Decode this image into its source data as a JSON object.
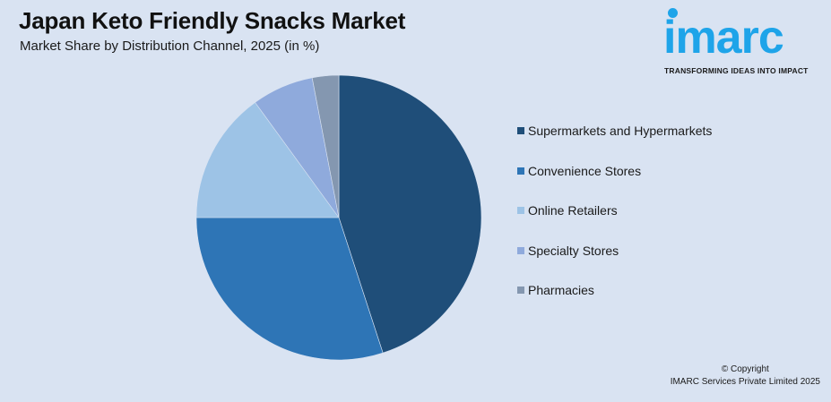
{
  "header": {
    "title": "Japan Keto Friendly Snacks Market",
    "subtitle": "Market Share by Distribution Channel, 2025 (in %)"
  },
  "logo": {
    "name": "imarc",
    "tagline": "TRANSFORMING IDEAS INTO IMPACT",
    "color": "#1ea4e9"
  },
  "footer": {
    "copyright": "© Copyright",
    "company": "IMARC Services Private Limited 2025"
  },
  "chart_data": {
    "type": "pie",
    "title": "Japan Keto Friendly Snacks Market",
    "subtitle": "Market Share by Distribution Channel, 2025 (in %)",
    "categories": [
      "Supermarkets and Hypermarkets",
      "Convenience Stores",
      "Online Retailers",
      "Specialty Stores",
      "Pharmacies"
    ],
    "values": [
      45,
      30,
      15,
      7,
      3
    ],
    "colors": [
      "#1f4e79",
      "#2e75b6",
      "#9dc3e6",
      "#8faadc",
      "#8497b0"
    ],
    "start_angle": "12 o'clock, clockwise",
    "legend_position": "right",
    "data_labels": false
  }
}
